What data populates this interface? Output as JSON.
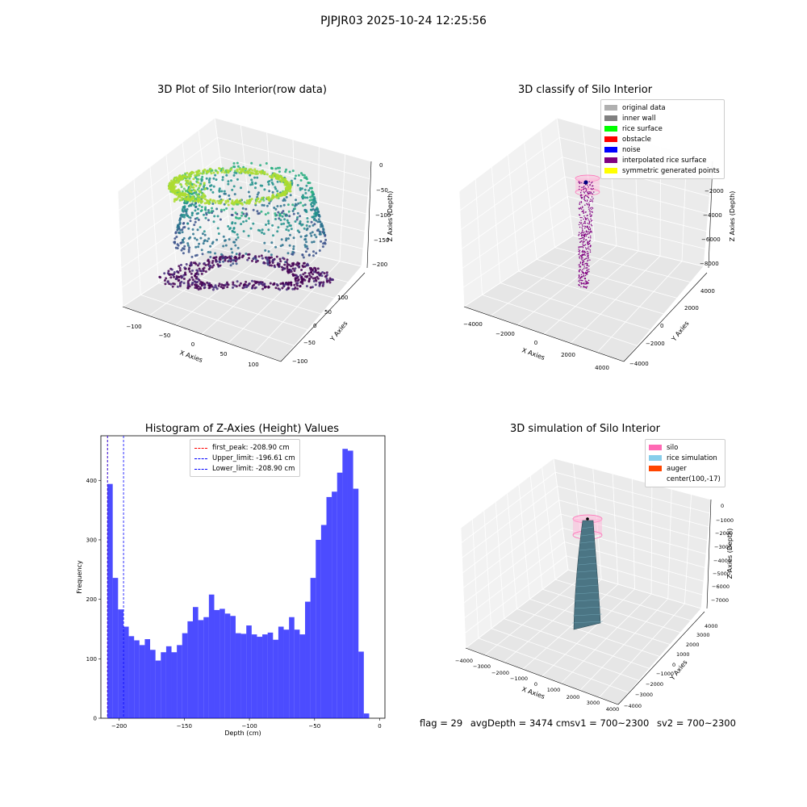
{
  "figure": {
    "suptitle": "PJPJR03 2025-10-24 12:25:56",
    "status": {
      "flag": "flag = 29",
      "avg": "avgDepth = 3474 cmsv1 = 700~2300",
      "sv2": "sv2 = 700~2300"
    }
  },
  "chart_data": [
    {
      "type": "scatter",
      "title": "3D Plot of Silo Interior(row data)",
      "xlabel": "X Axies",
      "ylabel": "Y Axies",
      "zlabel": "Z Axies (Depth)",
      "x_ticks": [
        "−100",
        "−50",
        "0",
        "50",
        "100"
      ],
      "y_ticks": [
        "100",
        "50",
        "0",
        "−50",
        "−100"
      ],
      "z_ticks": [
        "0",
        "−50",
        "−100",
        "−150",
        "−200"
      ],
      "xlim": [
        -120,
        120
      ],
      "ylim": [
        -120,
        120
      ],
      "zlim": [
        -220,
        0
      ],
      "colormap": "viridis"
    },
    {
      "type": "scatter",
      "title": "3D classify of Silo Interior",
      "xlabel": "X Axies",
      "ylabel": "Y Axies",
      "zlabel": "Z Axies (Depth)",
      "x_ticks": [
        "−4000",
        "−2000",
        "0",
        "2000",
        "4000"
      ],
      "y_ticks": [
        "4000",
        "2000",
        "0",
        "−2000",
        "−4000"
      ],
      "z_ticks": [
        "0",
        "−2000",
        "−4000",
        "−6000",
        "−8000"
      ],
      "xlim": [
        -4500,
        4500
      ],
      "ylim": [
        -4500,
        4500
      ],
      "zlim": [
        -9000,
        0
      ],
      "legend": [
        {
          "label": "original data",
          "color": "#b0b0b0"
        },
        {
          "label": "inner wall",
          "color": "#808080"
        },
        {
          "label": "rice surface",
          "color": "#00ff00"
        },
        {
          "label": "obstacle",
          "color": "#ff0000"
        },
        {
          "label": "noise",
          "color": "#0000ff"
        },
        {
          "label": "interpolated rice surface",
          "color": "#800080"
        },
        {
          "label": "symmetric generated points",
          "color": "#ffff00"
        }
      ],
      "legend_position": "top-right"
    },
    {
      "type": "bar",
      "title": "Histogram of Z-Axies (Height) Values",
      "xlabel": "Depth (cm)",
      "ylabel": "Frequency",
      "xlim": [
        -214,
        4
      ],
      "ylim": [
        0,
        475
      ],
      "bin_start": -209,
      "bin_width": 4.1,
      "values": [
        394,
        236,
        183,
        154,
        138,
        131,
        123,
        133,
        115,
        97,
        111,
        121,
        111,
        123,
        143,
        163,
        187,
        165,
        170,
        208,
        182,
        184,
        176,
        172,
        143,
        142,
        156,
        141,
        137,
        141,
        144,
        132,
        154,
        149,
        170,
        149,
        141,
        196,
        236,
        300,
        325,
        372,
        381,
        413,
        453,
        450,
        386,
        112,
        8
      ],
      "x_ticks": [
        "−200",
        "−150",
        "−100",
        "−50",
        "0"
      ],
      "y_ticks": [
        "0",
        "100",
        "200",
        "300",
        "400"
      ],
      "color": "#0000ff",
      "vlines": [
        {
          "label": "first_peak: -208.90 cm",
          "x": -208.9,
          "color": "#ff0000"
        },
        {
          "label": "Upper_limit: -196.61 cm",
          "x": -196.61,
          "color": "#0000ff"
        },
        {
          "label": "Lower_limit: -208.90 cm",
          "x": -208.9,
          "color": "#0000ff"
        }
      ],
      "legend_position": "top-center"
    },
    {
      "type": "area",
      "title": "3D simulation of Silo Interior",
      "xlabel": "X Axies",
      "ylabel": "Y Axies",
      "zlabel": "Z Axies (Depth)",
      "x_ticks": [
        "−4000",
        "−3000",
        "−2000",
        "−1000",
        "0",
        "1000",
        "2000",
        "3000",
        "4000"
      ],
      "y_ticks": [
        "4000",
        "3000",
        "2000",
        "1000",
        "0",
        "−1000",
        "−2000",
        "−3000",
        "−4000"
      ],
      "z_ticks": [
        "0",
        "−1000",
        "−2000",
        "−3000",
        "−4000",
        "−5000",
        "−6000",
        "−7000"
      ],
      "xlim": [
        -4200,
        4200
      ],
      "ylim": [
        -4200,
        4200
      ],
      "zlim": [
        -7600,
        0
      ],
      "legend": [
        {
          "label": "silo",
          "color": "#ff69b4"
        },
        {
          "label": "rice simulation",
          "color": "#87ceeb"
        },
        {
          "label": "auger",
          "color": "#ff4500"
        },
        {
          "label": "center(100,-17)",
          "color": ""
        }
      ],
      "legend_position": "top-right"
    }
  ]
}
